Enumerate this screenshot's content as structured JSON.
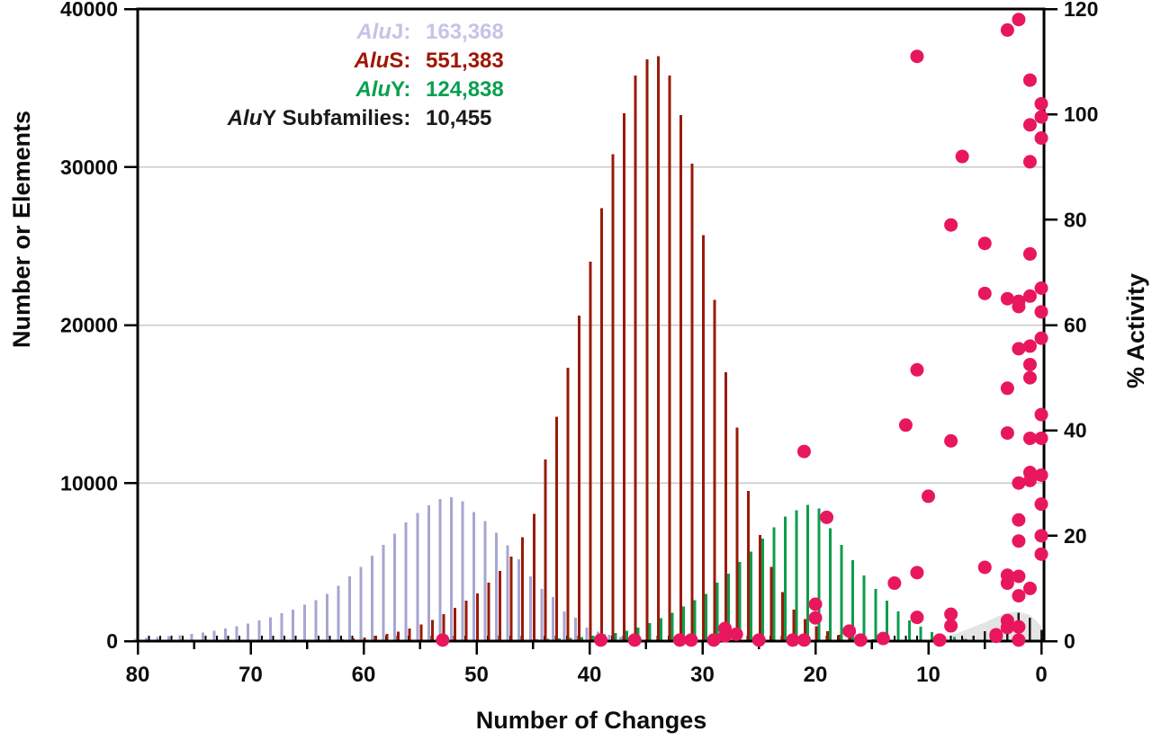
{
  "figure": {
    "legend": {
      "items": [
        {
          "italic": "Alu",
          "rest": "J: ",
          "value": "163,368",
          "color": "#c4c4e8"
        },
        {
          "italic": "Alu",
          "rest": "S: ",
          "value": "551,383",
          "color": "#a01606"
        },
        {
          "italic": "Alu",
          "rest": "Y: ",
          "value": "124,838",
          "color": "#0aa04f"
        },
        {
          "italic": "Alu",
          "rest": "Y Subfamilies: ",
          "value": "10,455",
          "color": "#1a1a1a"
        }
      ]
    }
  },
  "chart_data": {
    "type": "bar",
    "subtype": "stem-histogram with % activity scatter overlay",
    "background": "#ffffff",
    "frame_color": "#000000",
    "gridline_color": "#c9c9c9",
    "x_axis": {
      "label": "Number of Changes",
      "min": 0,
      "max": 80,
      "reversed": true,
      "major_ticks": [
        80,
        70,
        60,
        50,
        40,
        30,
        20,
        10,
        0
      ],
      "minor_tick_step": 5,
      "unit_tick_step": 1
    },
    "y_left_axis": {
      "label": "Number or Elements",
      "min": 0,
      "max": 40000,
      "ticks": [
        0,
        10000,
        20000,
        30000,
        40000
      ],
      "gridlines": [
        10000,
        20000,
        30000
      ]
    },
    "y_right_axis": {
      "label": "% Activity",
      "min": 0,
      "max": 120,
      "ticks": [
        0,
        20,
        40,
        60,
        80,
        100,
        120
      ]
    },
    "changes_note": "values arrays are indexed by number of changes 0..80",
    "series": [
      {
        "name": "AluJ",
        "total": 163368,
        "color": "#a6a6d2",
        "axis": "left",
        "x_offset": -3,
        "width": 3,
        "values": [
          0,
          0,
          0,
          0,
          0,
          0,
          0,
          0,
          0,
          0,
          0,
          0,
          0,
          0,
          0,
          0,
          0,
          0,
          0,
          0,
          0,
          0,
          0,
          0,
          0,
          0,
          0,
          0,
          0,
          0,
          5,
          10,
          20,
          30,
          50,
          90,
          150,
          250,
          400,
          600,
          860,
          1480,
          1880,
          2800,
          3310,
          4110,
          5190,
          6050,
          6850,
          7590,
          8160,
          8840,
          9100,
          9000,
          8600,
          8100,
          7500,
          6800,
          6100,
          5400,
          4700,
          4100,
          3500,
          3000,
          2600,
          2300,
          2000,
          1750,
          1500,
          1300,
          1100,
          950,
          800,
          650,
          550,
          450,
          380,
          300,
          250,
          200,
          150
        ]
      },
      {
        "name": "AluS",
        "total": 551383,
        "color": "#9a1a08",
        "axis": "left",
        "x_offset": 1,
        "width": 3,
        "values": [
          0,
          0,
          0,
          0,
          0,
          1,
          2,
          3,
          5,
          8,
          12,
          20,
          30,
          45,
          70,
          110,
          170,
          260,
          400,
          620,
          950,
          1400,
          2000,
          3100,
          4700,
          6700,
          9500,
          13500,
          17000,
          21600,
          25700,
          30200,
          33300,
          35800,
          37000,
          36800,
          35800,
          33400,
          30800,
          27400,
          24000,
          20600,
          17300,
          14200,
          11500,
          8040,
          6560,
          5360,
          4450,
          3710,
          3020,
          2570,
          2100,
          1700,
          1350,
          1050,
          800,
          600,
          450,
          330,
          240,
          170,
          120,
          80,
          55,
          35,
          25,
          15,
          10,
          6,
          4,
          2,
          1,
          0,
          0,
          0,
          0,
          0,
          0,
          0,
          0
        ]
      },
      {
        "name": "AluY",
        "total": 124838,
        "color": "#0d9d4d",
        "axis": "left",
        "x_offset": 4,
        "width": 3,
        "values": [
          0,
          0,
          5,
          10,
          25,
          50,
          90,
          150,
          250,
          400,
          570,
          910,
          1310,
          1880,
          2570,
          3310,
          4160,
          5130,
          6100,
          7130,
          8380,
          8610,
          8270,
          7870,
          7190,
          6500,
          5650,
          5020,
          4280,
          3700,
          3000,
          2600,
          2200,
          1800,
          1450,
          1140,
          850,
          650,
          520,
          420,
          340,
          270,
          210,
          160,
          130,
          100,
          80,
          60,
          50,
          40,
          30,
          20,
          15,
          10,
          8,
          5,
          3,
          2,
          1,
          0,
          0,
          0,
          0,
          0,
          0,
          0,
          0,
          0,
          0,
          0,
          0,
          0,
          0,
          0,
          0,
          0,
          0,
          0,
          0,
          0,
          0
        ]
      },
      {
        "name": "AluY Subfamilies",
        "total": 10455,
        "color": "#1a1a1a",
        "axis": "left",
        "x_offset": 0,
        "width": 2.5,
        "values": [
          700,
          1480,
          1800,
          1100,
          820,
          630,
          350,
          180,
          90,
          40,
          20,
          10,
          0,
          0,
          0,
          0,
          0,
          0,
          0,
          0,
          0,
          0,
          0,
          0,
          0,
          0,
          0,
          0,
          0,
          0,
          0,
          0,
          0,
          0,
          0,
          0,
          0,
          0,
          0,
          0,
          0,
          0,
          0,
          0,
          0,
          0,
          0,
          0,
          0,
          0,
          0,
          0,
          0,
          0,
          0,
          0,
          0,
          0,
          0,
          0,
          0,
          0,
          0,
          0,
          0,
          0,
          0,
          0,
          0,
          0,
          0,
          0,
          0,
          0,
          0,
          0,
          0,
          0,
          0,
          0,
          0
        ]
      }
    ],
    "gray_envelope": {
      "color": "#e4e4e4",
      "points": [
        [
          11,
          0
        ],
        [
          10,
          80
        ],
        [
          9,
          200
        ],
        [
          8,
          380
        ],
        [
          7,
          620
        ],
        [
          6,
          900
        ],
        [
          5,
          1180
        ],
        [
          4,
          1520
        ],
        [
          3,
          1800
        ],
        [
          2,
          1870
        ],
        [
          1,
          1650
        ],
        [
          0,
          950
        ]
      ]
    },
    "scatter": {
      "name": "% Activity",
      "color": "#e8175d",
      "axis": "right",
      "marker_radius": 7.5,
      "points": [
        [
          2,
          118
        ],
        [
          3,
          116
        ],
        [
          11,
          111
        ],
        [
          1,
          106.5
        ],
        [
          0,
          102
        ],
        [
          0,
          99.5
        ],
        [
          1,
          98
        ],
        [
          0,
          95.5
        ],
        [
          7,
          92
        ],
        [
          1,
          91
        ],
        [
          8,
          79
        ],
        [
          5,
          75.5
        ],
        [
          1,
          73.5
        ],
        [
          0,
          67
        ],
        [
          5,
          66
        ],
        [
          1,
          65.5
        ],
        [
          3,
          65
        ],
        [
          2,
          64.5
        ],
        [
          2,
          63.5
        ],
        [
          0,
          62.5
        ],
        [
          0,
          57.5
        ],
        [
          1,
          56
        ],
        [
          2,
          55.5
        ],
        [
          1,
          52.5
        ],
        [
          11,
          51.5
        ],
        [
          1,
          50
        ],
        [
          3,
          48
        ],
        [
          0,
          43
        ],
        [
          12,
          41
        ],
        [
          3,
          39.5
        ],
        [
          1,
          38.5
        ],
        [
          0,
          38.5
        ],
        [
          8,
          38
        ],
        [
          21,
          36
        ],
        [
          1,
          32
        ],
        [
          0,
          31.5
        ],
        [
          1,
          30.5
        ],
        [
          2,
          30
        ],
        [
          10,
          27.5
        ],
        [
          0,
          26
        ],
        [
          19,
          23.5
        ],
        [
          2,
          23
        ],
        [
          0,
          20
        ],
        [
          2,
          19
        ],
        [
          0,
          16.5
        ],
        [
          5,
          14
        ],
        [
          11,
          13
        ],
        [
          3,
          12.5
        ],
        [
          2,
          12.3
        ],
        [
          13,
          11
        ],
        [
          3,
          11
        ],
        [
          1,
          10
        ],
        [
          2,
          8.6
        ],
        [
          20,
          7
        ],
        [
          8,
          5.1
        ],
        [
          11,
          4.5
        ],
        [
          20,
          4.4
        ],
        [
          3,
          3.9
        ],
        [
          8,
          2.9
        ],
        [
          2,
          2.7
        ],
        [
          3,
          2.6
        ],
        [
          28,
          2.4
        ],
        [
          17,
          1.9
        ],
        [
          27,
          1.3
        ],
        [
          4,
          1.2
        ],
        [
          28,
          1
        ],
        [
          4,
          0.9
        ],
        [
          14,
          0.5
        ],
        [
          9,
          0.2
        ],
        [
          16,
          0.2
        ],
        [
          21,
          0.2
        ],
        [
          22,
          0.2
        ],
        [
          25,
          0.2
        ],
        [
          2,
          0.2
        ],
        [
          29,
          0.2
        ],
        [
          31,
          0.2
        ],
        [
          32,
          0.2
        ],
        [
          36,
          0.2
        ],
        [
          39,
          0.2
        ],
        [
          53,
          0.2
        ]
      ]
    }
  }
}
